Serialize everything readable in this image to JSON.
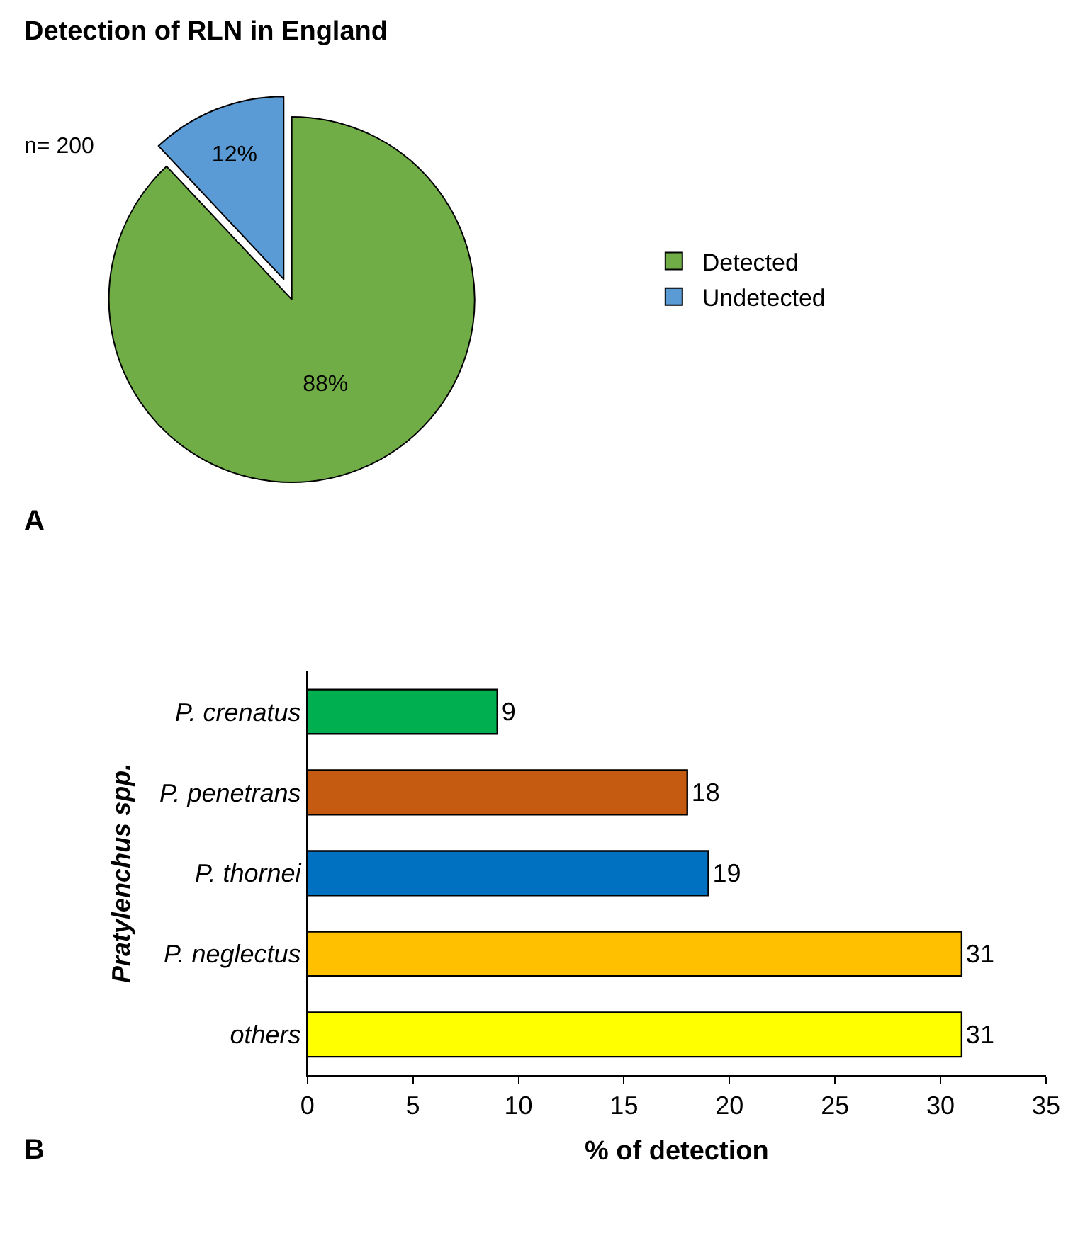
{
  "chart_data": [
    {
      "type": "pie",
      "title": "Detection of RLN in England",
      "categories": [
        "Detected",
        "Undetected"
      ],
      "values": [
        88,
        12
      ],
      "colors": [
        "#70ad47",
        "#5b9bd5"
      ],
      "value_labels": [
        "88%",
        "12%"
      ],
      "legend": "right",
      "annotations": [
        "n= 200",
        "A"
      ]
    },
    {
      "type": "bar",
      "orientation": "horizontal",
      "categories": [
        "P. crenatus",
        "P. penetrans",
        "P. thornei",
        "P. neglectus",
        "others"
      ],
      "values": [
        9,
        18,
        19,
        31,
        31
      ],
      "colors": [
        "#00b050",
        "#c55a11",
        "#0070c0",
        "#ffc000",
        "#ffff00"
      ],
      "xlim": [
        0,
        35
      ],
      "xticks": [
        0,
        5,
        10,
        15,
        20,
        25,
        30,
        35
      ],
      "xlabel": "% of detection",
      "ylabel": "Pratylenchus spp.",
      "data_labels": true,
      "annotations": [
        "B"
      ]
    }
  ]
}
